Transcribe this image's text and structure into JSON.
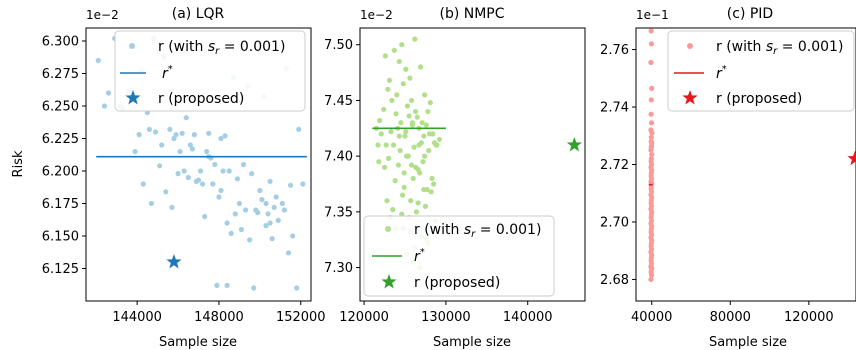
{
  "chart_data": [
    {
      "type": "scatter",
      "title": "(a) LQR",
      "xlabel": "Sample size",
      "ylabel": "Risk",
      "offset_label": "1e−2",
      "xlim": [
        141500,
        152500
      ],
      "ylim": [
        6.1,
        6.31
      ],
      "xticks": [
        144000,
        148000,
        152000
      ],
      "xtick_labels": [
        "144000",
        "148000",
        "152000"
      ],
      "yticks": [
        6.125,
        6.15,
        6.175,
        6.2,
        6.225,
        6.25,
        6.275,
        6.3
      ],
      "ytick_labels": [
        "6.125",
        "6.150",
        "6.175",
        "6.200",
        "6.225",
        "6.250",
        "6.275",
        "6.300"
      ],
      "colors": {
        "scatter": "#a6cee3",
        "line": "#1f78b4",
        "star": "#1f78b4"
      },
      "legend": {
        "placement": "top-right",
        "entries": [
          "r (with s_r = 0.001)",
          "r*",
          "r (proposed)"
        ]
      },
      "r_star": {
        "x_range": [
          142000,
          152300
        ],
        "y": 6.211
      },
      "proposed": {
        "x": 145800,
        "y": 6.13
      },
      "scatter": {
        "x": [
          142900,
          142100,
          143800,
          144200,
          142600,
          143200,
          144800,
          145300,
          144600,
          145900,
          146400,
          146800,
          147500,
          148100,
          148700,
          149400,
          150200,
          151300,
          151900,
          142400,
          143300,
          143600,
          144100,
          144500,
          144900,
          145200,
          145600,
          146100,
          146300,
          146700,
          147200,
          147400,
          147800,
          148200,
          148500,
          148900,
          149200,
          149600,
          150100,
          150500,
          150800,
          151200,
          151600,
          152100,
          145100,
          145700,
          146500,
          147100,
          147600,
          148300,
          148800,
          149300,
          149800,
          150300,
          150700,
          151100,
          151500,
          143900,
          144300,
          145400,
          146000,
          146900,
          147300,
          147700,
          148000,
          148400,
          148600,
          149100,
          149500,
          149900,
          150400,
          150600,
          150900,
          151400,
          151800,
          145800,
          146200,
          147000,
          147900,
          148400,
          149700,
          150000,
          150500,
          144700,
          146600,
          147500,
          148100,
          149000,
          150300
        ],
        "y": [
          6.302,
          6.285,
          6.261,
          6.277,
          6.26,
          6.25,
          6.302,
          6.288,
          6.232,
          6.228,
          6.241,
          6.228,
          6.229,
          6.225,
          6.272,
          6.265,
          6.257,
          6.279,
          6.232,
          6.25,
          6.248,
          6.262,
          6.228,
          6.245,
          6.23,
          6.22,
          6.232,
          6.215,
          6.2,
          6.217,
          6.19,
          6.215,
          6.205,
          6.2,
          6.2,
          6.194,
          6.205,
          6.198,
          6.178,
          6.192,
          6.18,
          6.17,
          6.15,
          6.19,
          6.204,
          6.172,
          6.195,
          6.2,
          6.21,
          6.227,
          6.167,
          6.17,
          6.17,
          6.158,
          6.172,
          6.175,
          6.189,
          6.215,
          6.19,
          6.184,
          6.198,
          6.192,
          6.165,
          6.19,
          6.18,
          6.16,
          6.152,
          6.155,
          6.147,
          6.168,
          6.167,
          6.148,
          6.162,
          6.137,
          6.11,
          6.225,
          6.229,
          6.193,
          6.112,
          6.112,
          6.11,
          6.185,
          6.16,
          6.175,
          6.22,
          6.211,
          6.185,
          6.175,
          6.175
        ]
      }
    },
    {
      "type": "scatter",
      "title": "(b) NMPC",
      "xlabel": "Sample size",
      "ylabel": "",
      "offset_label": "1e−2",
      "xlim": [
        119500,
        147000
      ],
      "ylim": [
        7.27,
        7.515
      ],
      "xticks": [
        120000,
        130000,
        140000
      ],
      "xtick_labels": [
        "120000",
        "130000",
        "140000"
      ],
      "yticks": [
        7.3,
        7.35,
        7.4,
        7.45,
        7.5
      ],
      "ytick_labels": [
        "7.30",
        "7.35",
        "7.40",
        "7.45",
        "7.50"
      ],
      "colors": {
        "scatter": "#b2df8a",
        "line": "#33a02c",
        "star": "#33a02c"
      },
      "legend": {
        "placement": "bottom-left",
        "entries": [
          "r (with s_r = 0.001)",
          "r*",
          "r (proposed)"
        ]
      },
      "r_star": {
        "x_range": [
          121000,
          130000
        ],
        "y": 7.425
      },
      "proposed": {
        "x": 145700,
        "y": 7.41
      },
      "scatter": {
        "x": [
          122600,
          123700,
          124300,
          125100,
          124600,
          123100,
          122900,
          126200,
          125600,
          124000,
          123400,
          124800,
          125300,
          126900,
          127400,
          128100,
          127800,
          122400,
          121900,
          121500,
          123900,
          124500,
          125800,
          126500,
          127100,
          128400,
          129200,
          128900,
          122100,
          123300,
          124100,
          125000,
          125900,
          126700,
          127600,
          128600,
          121700,
          122700,
          123600,
          124400,
          125200,
          126100,
          127000,
          127900,
          128800,
          123000,
          124200,
          125400,
          126300,
          127200,
          128300,
          122500,
          123800,
          124900,
          126000,
          126800,
          127700,
          128500,
          124700,
          125700,
          126600,
          127300,
          128200,
          123500,
          124600,
          125500,
          126400,
          127500,
          128700,
          122800,
          123200,
          124800,
          125600,
          126200,
          127000,
          127800,
          121800,
          123900,
          125200,
          126000,
          126800,
          127600,
          124300,
          125100,
          125900,
          126700,
          127300,
          128000,
          125500,
          126300,
          124900,
          125800,
          126600,
          127400
        ],
        "y": [
          7.49,
          7.495,
          7.485,
          7.478,
          7.5,
          7.468,
          7.46,
          7.505,
          7.47,
          7.455,
          7.45,
          7.465,
          7.445,
          7.48,
          7.455,
          7.448,
          7.44,
          7.442,
          7.432,
          7.425,
          7.438,
          7.43,
          7.45,
          7.435,
          7.43,
          7.42,
          7.415,
          7.41,
          7.42,
          7.422,
          7.425,
          7.418,
          7.428,
          7.41,
          7.428,
          7.412,
          7.41,
          7.41,
          7.41,
          7.405,
          7.4,
          7.408,
          7.412,
          7.405,
          7.41,
          7.398,
          7.392,
          7.4,
          7.39,
          7.395,
          7.38,
          7.39,
          7.378,
          7.372,
          7.38,
          7.385,
          7.37,
          7.375,
          7.365,
          7.36,
          7.358,
          7.37,
          7.368,
          7.352,
          7.348,
          7.345,
          7.35,
          7.355,
          7.342,
          7.36,
          7.345,
          7.335,
          7.332,
          7.318,
          7.328,
          7.322,
          7.395,
          7.335,
          7.312,
          7.305,
          7.3,
          7.326,
          7.418,
          7.422,
          7.43,
          7.425,
          7.418,
          7.42,
          7.436,
          7.44,
          7.385,
          7.392,
          7.388,
          7.4
        ]
      }
    },
    {
      "type": "scatter",
      "title": "(c) PID",
      "xlabel": "Sample size",
      "ylabel": "",
      "offset_label": "1e−1",
      "xlim": [
        32000,
        144000
      ],
      "ylim": [
        2.6725,
        2.7675
      ],
      "xticks": [
        40000,
        80000,
        120000
      ],
      "xtick_labels": [
        "40000",
        "80000",
        "120000"
      ],
      "yticks": [
        2.68,
        2.7,
        2.72,
        2.74,
        2.76
      ],
      "ytick_labels": [
        "2.68",
        "2.70",
        "2.72",
        "2.74",
        "2.76"
      ],
      "colors": {
        "scatter": "#fb9a99",
        "line": "#e31a1c",
        "star": "#e31a1c"
      },
      "legend": {
        "placement": "top-right",
        "entries": [
          "r (with s_r = 0.001)",
          "r*",
          "r (proposed)"
        ]
      },
      "r_star": {
        "x_range": [
          38500,
          40500
        ],
        "y": 2.713
      },
      "proposed": {
        "x": 143500,
        "y": 2.722
      },
      "scatter": {
        "x": [
          39700,
          39900,
          39600,
          40000,
          39800,
          39700,
          39900,
          39600,
          40100,
          39800,
          39700,
          39900,
          39600,
          40000,
          39800,
          39700,
          39900,
          39600,
          40000,
          39800,
          39700,
          39900,
          39600,
          40000,
          39800,
          39700,
          39900,
          39600,
          40000,
          39800,
          39700,
          39900,
          39600,
          40000,
          39800,
          39700,
          39900,
          39600,
          40000,
          39800,
          39700,
          39900,
          39600,
          40000,
          39800,
          39700,
          39900,
          39600,
          40000,
          39800,
          39700,
          39900,
          39600,
          40000,
          39800,
          39700,
          39900,
          39600,
          40000,
          39800
        ],
        "y": [
          2.7665,
          2.762,
          2.7555,
          2.7465,
          2.7425,
          2.7375,
          2.7345,
          2.732,
          2.731,
          2.7295,
          2.728,
          2.7265,
          2.725,
          2.7235,
          2.722,
          2.721,
          2.72,
          2.719,
          2.718,
          2.717,
          2.716,
          2.715,
          2.714,
          2.7135,
          2.7125,
          2.7115,
          2.7105,
          2.7095,
          2.7085,
          2.7075,
          2.7065,
          2.7055,
          2.7045,
          2.7035,
          2.7025,
          2.7015,
          2.7005,
          2.6995,
          2.6985,
          2.6975,
          2.6965,
          2.6955,
          2.6945,
          2.6935,
          2.6925,
          2.6915,
          2.6905,
          2.6895,
          2.6885,
          2.6875,
          2.6865,
          2.6855,
          2.6845,
          2.684,
          2.6835,
          2.6825,
          2.6815,
          2.68,
          2.7275,
          2.726
        ]
      }
    }
  ]
}
